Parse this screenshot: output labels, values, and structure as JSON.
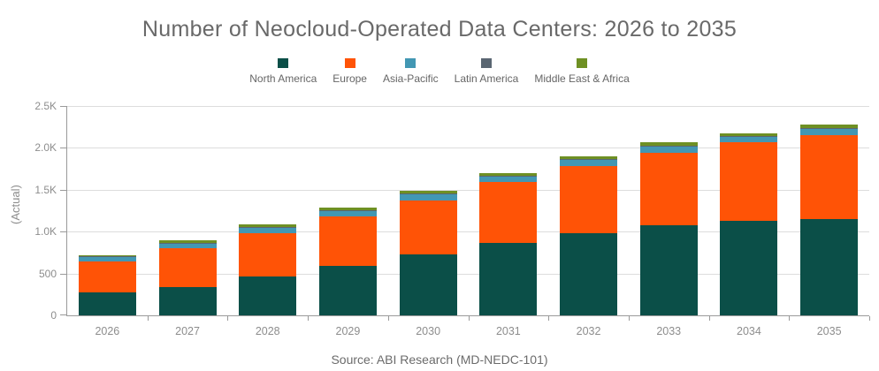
{
  "title": "Number of Neocloud-Operated Data Centers: 2026 to 2035",
  "source": "Source: ABI Research (MD-NEDC-101)",
  "y_axis": {
    "title": "(Actual)"
  },
  "colors": {
    "north_america": "#0B4F48",
    "europe": "#FF5306",
    "asia_pacific": "#4297B3",
    "latin_america": "#5A6672",
    "middle_east_africa": "#6E9023",
    "axis_line": "#9a9a9a",
    "gridline": "#dddddd",
    "title_text": "#696969",
    "axis_text": "#8d8d8d"
  },
  "chart_data": {
    "type": "bar",
    "stacked": true,
    "title": "Number of Neocloud-Operated Data Centers: 2026 to 2035",
    "xlabel": "",
    "ylabel": "(Actual)",
    "ylim": [
      0,
      2500
    ],
    "grid": "horizontal",
    "legend_position": "top",
    "categories": [
      "2026",
      "2027",
      "2028",
      "2029",
      "2030",
      "2031",
      "2032",
      "2033",
      "2034",
      "2035"
    ],
    "y_tick_values": [
      0,
      500,
      1000,
      1500,
      2000,
      2500
    ],
    "y_tick_labels": [
      "0",
      "500",
      "1.0K",
      "1.5K",
      "2.0K",
      "2.5K"
    ],
    "series": [
      {
        "name": "North America",
        "color": "#0B4F48",
        "values": [
          270,
          340,
          465,
          590,
          730,
          870,
          980,
          1080,
          1125,
          1145
        ]
      },
      {
        "name": "Europe",
        "color": "#FF5306",
        "values": [
          375,
          460,
          520,
          590,
          645,
          720,
          805,
          860,
          940,
          1010
        ]
      },
      {
        "name": "Asia-Pacific",
        "color": "#4297B3",
        "values": [
          55,
          65,
          70,
          75,
          75,
          75,
          78,
          80,
          75,
          75
        ]
      },
      {
        "name": "Latin America",
        "color": "#5A6672",
        "values": [
          2,
          2,
          3,
          3,
          3,
          3,
          4,
          4,
          5,
          5
        ]
      },
      {
        "name": "Middle East & Africa",
        "color": "#6E9023",
        "values": [
          12,
          25,
          30,
          32,
          32,
          35,
          36,
          43,
          32,
          43
        ]
      }
    ]
  }
}
